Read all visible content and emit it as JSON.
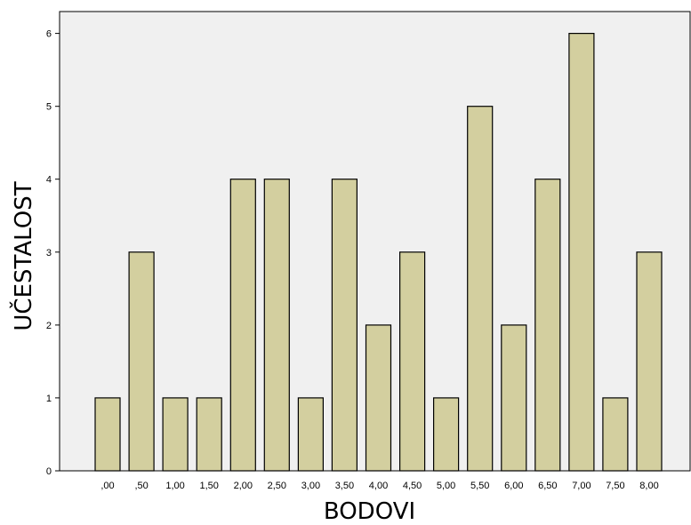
{
  "chart_data": {
    "type": "bar",
    "xlabel": "BODOVI",
    "ylabel": "UČESTALOST",
    "categories": [
      ",00",
      ",50",
      "1,00",
      "1,50",
      "2,00",
      "2,50",
      "3,00",
      "3,50",
      "4,00",
      "4,50",
      "5,00",
      "5,50",
      "6,00",
      "6,50",
      "7,00",
      "7,50",
      "8,00"
    ],
    "values": [
      1,
      3,
      1,
      1,
      4,
      4,
      1,
      4,
      2,
      3,
      1,
      5,
      2,
      4,
      6,
      1,
      3
    ],
    "ylim": [
      0,
      6.3
    ],
    "yticks": [
      "0",
      "1",
      "2",
      "3",
      "4",
      "5",
      "6"
    ],
    "grid": false,
    "bar_color": "#d3cf9f",
    "plot_background": "#f0f0f0",
    "outline_color": "#000000"
  }
}
